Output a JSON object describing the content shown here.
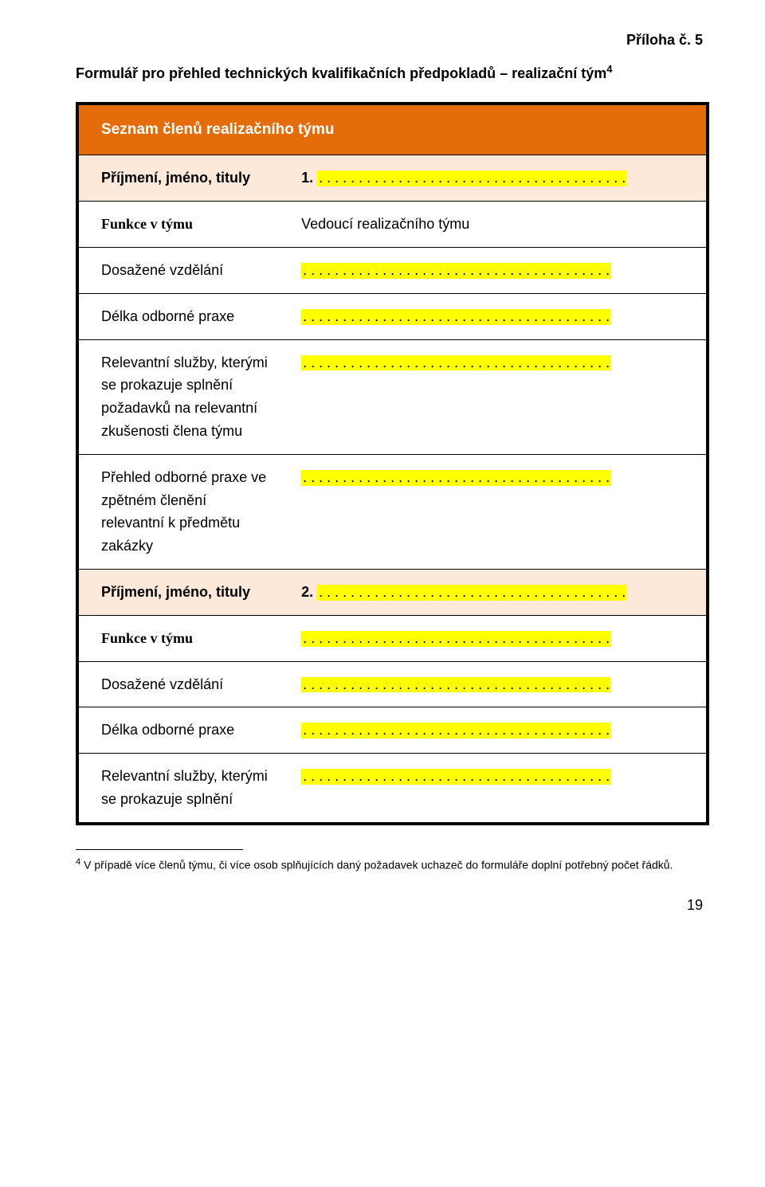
{
  "attachment_label": "Příloha č. 5",
  "form_title": "Formulář pro přehled technických kvalifikačních předpokladů – realizační tým",
  "form_title_sup": "4",
  "table_header": "Seznam členů realizačního týmu",
  "dots": ". . . . . . . . . . . . . . . . . . . . . . . . . . . . . . . . . . . . . . .",
  "labels": {
    "name": "Příjmení, jméno, tituly",
    "role": "Funkce v týmu",
    "education": "Dosažené vzdělání",
    "practice_len": "Délka odborné praxe",
    "relevant_services_full": "Relevantní služby, kterými se prokazuje splnění požadavků na relevantní zkušenosti člena týmu",
    "practice_overview": "Přehled odborné praxe ve zpětném členění relevantní k předmětu zakázky",
    "relevant_services_short": "Relevantní služby, kterými se prokazuje splnění"
  },
  "values": {
    "lead_num": "1.",
    "lead_role": "Vedoucí realizačního týmu",
    "second_num": "2."
  },
  "footnote": {
    "num": "4",
    "text": "V případě více členů týmu, či více osob splňujících daný požadavek uchazeč do formuláře doplní potřebný počet řádků."
  },
  "page_number": "19"
}
